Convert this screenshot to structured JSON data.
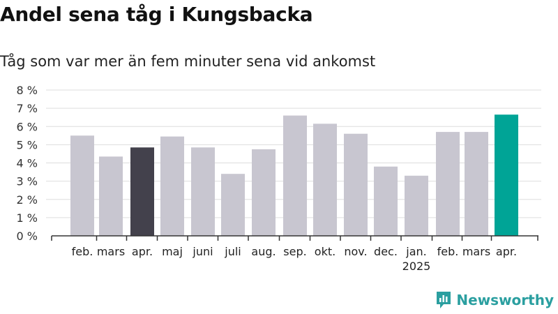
{
  "title": "Andel sena tåg i Kungsbacka",
  "subtitle": "Tåg som var mer än fem minuter sena vid ankomst",
  "brand": {
    "name": "Newsworthy",
    "icon": "newsworthy-logo-icon"
  },
  "colors": {
    "default": "#c8c6d0",
    "previous_year": "#43414c",
    "highlight": "#00a496",
    "grid": "#dddddd",
    "axis": "#333333"
  },
  "chart_data": {
    "type": "bar",
    "categories": [
      "feb.",
      "mars",
      "apr.",
      "maj",
      "juni",
      "juli",
      "aug.",
      "sep.",
      "okt.",
      "nov.",
      "dec.",
      "jan.",
      "feb.",
      "mars",
      "apr."
    ],
    "year_labels": [
      "",
      "",
      "",
      "",
      "",
      "",
      "",
      "",
      "",
      "",
      "",
      "2025",
      "",
      "",
      ""
    ],
    "values": [
      5.5,
      4.35,
      4.85,
      5.45,
      4.85,
      3.4,
      4.75,
      6.6,
      6.15,
      5.6,
      3.8,
      3.3,
      5.7,
      5.7,
      6.65
    ],
    "bar_colors": [
      "default",
      "default",
      "previous_year",
      "default",
      "default",
      "default",
      "default",
      "default",
      "default",
      "default",
      "default",
      "default",
      "default",
      "default",
      "highlight"
    ],
    "yticks": [
      "0 %",
      "1 %",
      "2 %",
      "3 %",
      "4 %",
      "5 %",
      "6 %",
      "7 %",
      "8 %"
    ],
    "ylim": [
      0,
      8
    ],
    "grid": true
  }
}
